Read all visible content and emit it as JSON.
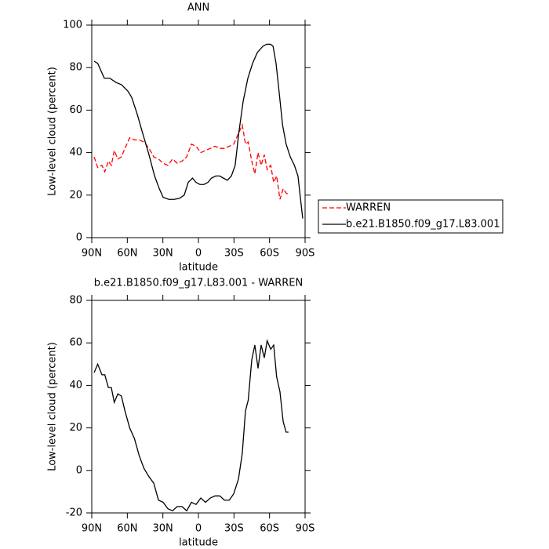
{
  "chart_data": [
    {
      "type": "line",
      "title": "ANN",
      "xlabel": "latitude",
      "ylabel": "Low-level cloud (percent)",
      "xlim": [
        90,
        -90
      ],
      "ylim": [
        0,
        100
      ],
      "xticks": [
        {
          "value": 90,
          "label": "90N"
        },
        {
          "value": 60,
          "label": "60N"
        },
        {
          "value": 30,
          "label": "30N"
        },
        0,
        {
          "value": -30,
          "label": "30S"
        },
        {
          "value": -60,
          "label": "60S"
        },
        {
          "value": -90,
          "label": "90S"
        }
      ],
      "yticks": [
        0,
        20,
        40,
        60,
        80,
        100
      ],
      "legend": "right",
      "series": [
        {
          "name": "WARREN",
          "color": "#ff0000",
          "style": "dashed",
          "x": [
            88,
            85,
            81.4,
            79,
            76,
            73.5,
            71,
            68,
            65,
            62,
            58,
            54,
            50,
            46,
            41.7,
            37.7,
            33.7,
            29.8,
            25.8,
            21.8,
            17.9,
            13.9,
            9.9,
            5.9,
            2,
            -2,
            -6,
            -10,
            -14,
            -18,
            -22,
            -26,
            -29.8,
            -33.8,
            -37,
            -39.7,
            -42,
            -45,
            -47.6,
            -50.3,
            -52.9,
            -55.6,
            -58,
            -61,
            -63.5,
            -66,
            -68.8,
            -71.5,
            -74,
            -77
          ],
          "values": [
            38,
            33,
            34,
            31,
            36,
            34,
            41,
            37,
            38,
            42,
            47,
            46,
            46,
            45,
            42,
            38,
            37,
            35,
            34,
            37,
            35,
            36,
            38,
            44,
            43,
            40,
            41,
            42,
            43,
            42,
            42,
            43,
            44,
            49,
            53,
            44,
            45,
            36,
            30,
            40,
            34,
            39,
            32,
            34,
            26,
            29,
            18,
            23,
            21,
            20
          ]
        },
        {
          "name": "b.e21.B1850.f09_g17.L83.001",
          "color": "#000000",
          "style": "solid",
          "x": [
            88,
            85,
            79.4,
            74.8,
            69.5,
            65,
            59.6,
            56.3,
            51.6,
            47,
            41.7,
            37,
            33,
            29.8,
            25,
            20.5,
            16,
            12,
            8.6,
            5,
            2,
            -1.3,
            -4.6,
            -8,
            -11,
            -14.6,
            -18,
            -21,
            -24.5,
            -27.8,
            -31,
            -34,
            -37.7,
            -41.7,
            -45.7,
            -49.6,
            -54.3,
            -57.6,
            -60.9,
            -63,
            -65.5,
            -68,
            -71,
            -74,
            -77.5,
            -81,
            -84,
            -88
          ],
          "values": [
            83,
            82,
            75,
            75,
            73,
            72,
            69,
            66,
            58,
            49,
            39,
            29,
            23,
            19,
            18,
            18,
            18.5,
            20,
            26,
            28,
            26,
            25,
            25,
            26,
            28,
            29,
            29,
            28,
            27,
            29,
            34,
            49,
            64,
            75,
            82,
            87,
            90,
            91,
            91,
            90,
            82,
            69,
            53,
            44,
            38,
            34,
            29,
            9
          ]
        }
      ]
    },
    {
      "type": "line",
      "title": "b.e21.B1850.f09_g17.L83.001 - WARREN",
      "xlabel": "latitude",
      "ylabel": "Low-level cloud (percent)",
      "xlim": [
        90,
        -90
      ],
      "ylim": [
        -20,
        80
      ],
      "xticks": [
        {
          "value": 90,
          "label": "90N"
        },
        {
          "value": 60,
          "label": "60N"
        },
        {
          "value": 30,
          "label": "30N"
        },
        0,
        {
          "value": -30,
          "label": "30S"
        },
        {
          "value": -60,
          "label": "60S"
        },
        {
          "value": -90,
          "label": "90S"
        }
      ],
      "yticks": [
        -20,
        0,
        20,
        40,
        60,
        80
      ],
      "series": [
        {
          "color": "#000000",
          "style": "solid",
          "x": [
            88,
            85,
            81.4,
            79,
            76,
            73.5,
            71,
            68,
            65,
            62,
            58,
            54,
            50,
            46,
            41.7,
            37.7,
            33.7,
            29.8,
            25.8,
            21.8,
            17.9,
            13.9,
            9.9,
            5.9,
            2,
            -2,
            -6,
            -10,
            -14,
            -18,
            -22,
            -26,
            -29.8,
            -33.8,
            -37,
            -39.7,
            -42,
            -45,
            -47.6,
            -50.3,
            -52.9,
            -55.6,
            -58,
            -61,
            -63.5,
            -66,
            -68.8,
            -71.5,
            -74,
            -76
          ],
          "values": [
            46,
            50,
            45,
            45,
            39,
            39,
            32,
            36,
            35,
            28,
            20,
            15,
            7,
            1,
            -3,
            -6,
            -14,
            -15,
            -18,
            -19,
            -17,
            -17,
            -19,
            -15,
            -16,
            -13,
            -15,
            -13,
            -12,
            -12,
            -14,
            -14,
            -11,
            -4,
            8,
            28,
            33,
            52,
            59,
            48,
            59,
            53,
            61,
            57,
            59,
            44,
            37,
            23,
            18,
            18
          ]
        }
      ]
    }
  ]
}
